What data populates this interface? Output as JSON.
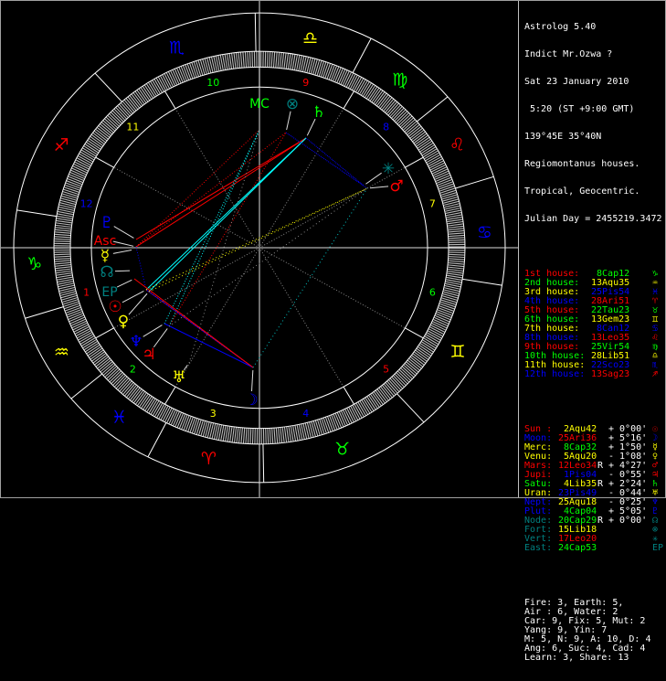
{
  "header": {
    "app": "Astrolog 5.40",
    "name": "Indict Mr.Ozwa ?",
    "date": "Sat 23 January 2010",
    "time": " 5:20 (ST +9:00 GMT)",
    "location": "139°45E 35°40N",
    "house_system": "Regiomontanus houses.",
    "zodiac": "Tropical, Geocentric.",
    "julian": "Julian Day = 2455219.3472"
  },
  "colors": {
    "fire": "#ff0000",
    "earth": "#00ff00",
    "air": "#ffff00",
    "water": "#0000ff",
    "teal": "#008080",
    "text": "#ffffff",
    "ring": "#c0c0c0"
  },
  "houses": [
    {
      "label": "1st house:",
      "value": " 8Cap12",
      "glyph": "♑",
      "label_color": "#ff0000",
      "value_color": "#00ff00"
    },
    {
      "label": "2nd house:",
      "value": "13Aqu35",
      "glyph": "♒",
      "label_color": "#00ff00",
      "value_color": "#ffff00"
    },
    {
      "label": "3rd house:",
      "value": "25Pis54",
      "glyph": "♓",
      "label_color": "#ffff00",
      "value_color": "#0000ff"
    },
    {
      "label": "4th house:",
      "value": "28Ari51",
      "glyph": "♈",
      "label_color": "#0000ff",
      "value_color": "#ff0000"
    },
    {
      "label": "5th house:",
      "value": "22Tau23",
      "glyph": "♉",
      "label_color": "#ff0000",
      "value_color": "#00ff00"
    },
    {
      "label": "6th house:",
      "value": "13Gem23",
      "glyph": "♊",
      "label_color": "#00ff00",
      "value_color": "#ffff00"
    },
    {
      "label": "7th house:",
      "value": " 8Can12",
      "glyph": "♋",
      "label_color": "#ffff00",
      "value_color": "#0000ff"
    },
    {
      "label": "8th house:",
      "value": "13Leo35",
      "glyph": "♌",
      "label_color": "#0000ff",
      "value_color": "#ff0000"
    },
    {
      "label": "9th house:",
      "value": "25Vir54",
      "glyph": "♍",
      "label_color": "#ff0000",
      "value_color": "#00ff00"
    },
    {
      "label": "10th house:",
      "value": "28Lib51",
      "glyph": "♎",
      "label_color": "#00ff00",
      "value_color": "#ffff00"
    },
    {
      "label": "11th house:",
      "value": "22Sco23",
      "glyph": "♏",
      "label_color": "#ffff00",
      "value_color": "#0000ff"
    },
    {
      "label": "12th house:",
      "value": "13Sag23",
      "glyph": "♐",
      "label_color": "#0000ff",
      "value_color": "#ff0000"
    }
  ],
  "planets": [
    {
      "name": "Sun :",
      "pos": " 2Aqu42",
      "retro": "",
      "lat": "+ 0°00'",
      "glyph": "☉",
      "name_color": "#ff0000",
      "pos_color": "#ffff00"
    },
    {
      "name": "Moon:",
      "pos": "25Ari36",
      "retro": "",
      "lat": "+ 5°16'",
      "glyph": "☽",
      "name_color": "#0000ff",
      "pos_color": "#ff0000"
    },
    {
      "name": "Merc:",
      "pos": " 8Cap32",
      "retro": "",
      "lat": "+ 1°50'",
      "glyph": "☿",
      "name_color": "#ffff00",
      "pos_color": "#00ff00"
    },
    {
      "name": "Venu:",
      "pos": " 5Aqu20",
      "retro": "",
      "lat": "- 1°08'",
      "glyph": "♀",
      "name_color": "#ffff00",
      "pos_color": "#ffff00"
    },
    {
      "name": "Mars:",
      "pos": "12Leo34",
      "retro": "R",
      "lat": "+ 4°27'",
      "glyph": "♂",
      "name_color": "#ff0000",
      "pos_color": "#ff0000"
    },
    {
      "name": "Jupi:",
      "pos": " 1Pis04",
      "retro": "",
      "lat": "- 0°55'",
      "glyph": "♃",
      "name_color": "#ff0000",
      "pos_color": "#0000ff"
    },
    {
      "name": "Satu:",
      "pos": " 4Lib35",
      "retro": "R",
      "lat": "+ 2°24'",
      "glyph": "♄",
      "name_color": "#00ff00",
      "pos_color": "#ffff00"
    },
    {
      "name": "Uran:",
      "pos": "23Pis49",
      "retro": "",
      "lat": "- 0°44'",
      "glyph": "♅",
      "name_color": "#ffff00",
      "pos_color": "#0000ff"
    },
    {
      "name": "Nept:",
      "pos": "25Aqu18",
      "retro": "",
      "lat": "- 0°25'",
      "glyph": "♆",
      "name_color": "#0000ff",
      "pos_color": "#ffff00"
    },
    {
      "name": "Plut:",
      "pos": " 4Cap04",
      "retro": "",
      "lat": "+ 5°05'",
      "glyph": "♇",
      "name_color": "#0000ff",
      "pos_color": "#00ff00"
    },
    {
      "name": "Node:",
      "pos": "20Cap29",
      "retro": "R",
      "lat": "+ 0°00'",
      "glyph": "☊",
      "name_color": "#008080",
      "pos_color": "#00ff00"
    },
    {
      "name": "Fort:",
      "pos": "15Lib18",
      "retro": "",
      "lat": "",
      "glyph": "⊗",
      "name_color": "#008080",
      "pos_color": "#ffff00"
    },
    {
      "name": "Vert:",
      "pos": "17Leo20",
      "retro": "",
      "lat": "",
      "glyph": "✳",
      "name_color": "#008080",
      "pos_color": "#ff0000"
    },
    {
      "name": "East:",
      "pos": "24Cap53",
      "retro": "",
      "lat": "",
      "glyph": "EP",
      "name_color": "#008080",
      "pos_color": "#00ff00"
    }
  ],
  "summary": [
    "Fire: 3, Earth: 5,",
    "Air : 6, Water: 2",
    "Car: 9, Fix: 5, Mut: 2",
    "Yang: 9, Yin: 7",
    "M: 5, N: 9, A: 10, D: 4",
    "Ang: 6, Suc: 4, Cad: 4",
    "Learn: 3, Share: 13"
  ],
  "wheel": {
    "signs": [
      {
        "glyph": "♎",
        "color": "#ffff00"
      },
      {
        "glyph": "♍",
        "color": "#00ff00"
      },
      {
        "glyph": "♌",
        "color": "#ff0000"
      },
      {
        "glyph": "♋",
        "color": "#0000ff"
      },
      {
        "glyph": "♊",
        "color": "#ffff00"
      },
      {
        "glyph": "♉",
        "color": "#00ff00"
      },
      {
        "glyph": "♈",
        "color": "#ff0000"
      },
      {
        "glyph": "♓",
        "color": "#0000ff"
      },
      {
        "glyph": "♒",
        "color": "#ffff00"
      },
      {
        "glyph": "♑",
        "color": "#00ff00"
      },
      {
        "glyph": "♐",
        "color": "#ff0000"
      },
      {
        "glyph": "♏",
        "color": "#0000ff"
      }
    ],
    "house_numbers": [
      "1",
      "2",
      "3",
      "4",
      "5",
      "6",
      "7",
      "8",
      "9",
      "10",
      "11",
      "12"
    ],
    "points": [
      {
        "glyph": "MC",
        "color": "#00ff00"
      },
      {
        "glyph": "⊗",
        "color": "#008080"
      },
      {
        "glyph": "♄",
        "color": "#00ff00"
      },
      {
        "glyph": "✳",
        "color": "#008080"
      },
      {
        "glyph": "♂",
        "color": "#ff0000"
      },
      {
        "glyph": "♇",
        "color": "#0000ff"
      },
      {
        "glyph": "Asc",
        "color": "#ff0000"
      },
      {
        "glyph": "☿",
        "color": "#ffff00"
      },
      {
        "glyph": "☊",
        "color": "#008080"
      },
      {
        "glyph": "EP",
        "color": "#008080"
      },
      {
        "glyph": "☉",
        "color": "#ff0000"
      },
      {
        "glyph": "♀",
        "color": "#ffff00"
      },
      {
        "glyph": "♆",
        "color": "#0000ff"
      },
      {
        "glyph": "♃",
        "color": "#ff0000"
      },
      {
        "glyph": "♅",
        "color": "#ffff00"
      },
      {
        "glyph": "☽",
        "color": "#0000ff"
      }
    ]
  }
}
